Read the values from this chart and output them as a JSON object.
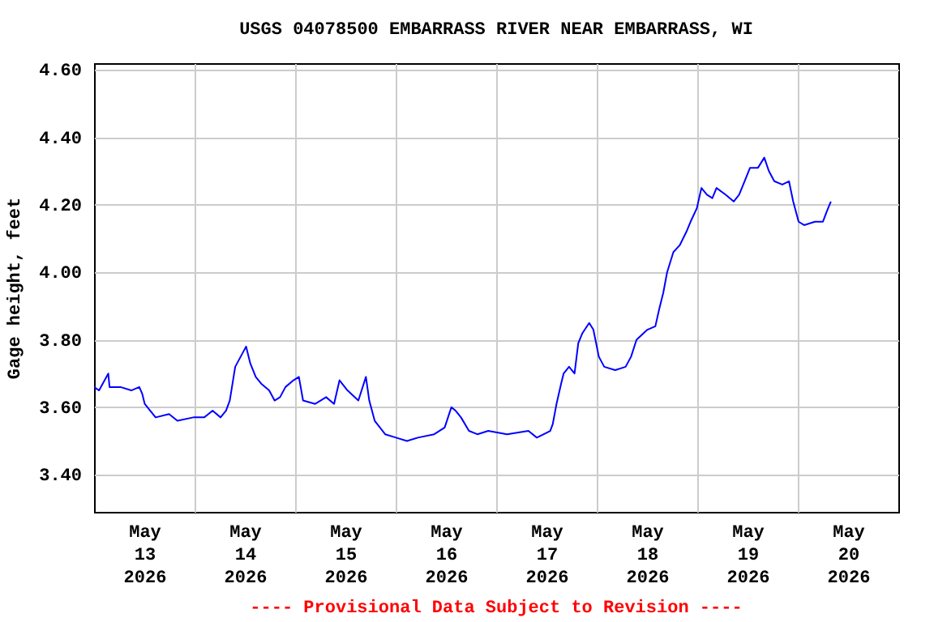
{
  "chart_data": {
    "type": "line",
    "title": "USGS 04078500 EMBARRASS RIVER NEAR EMBARRASS, WI",
    "ylabel": "Gage height, feet",
    "annotations": [
      "---- Provisional Data Subject to Revision ----"
    ],
    "x": [
      "2026-05-13T00:00",
      "2026-05-13T01:12",
      "2026-05-13T03:24",
      "2026-05-13T03:42",
      "2026-05-13T06:18",
      "2026-05-13T08:54",
      "2026-05-13T10:48",
      "2026-05-13T11:30",
      "2026-05-13T12:06",
      "2026-05-13T13:24",
      "2026-05-13T14:42",
      "2026-05-13T17:54",
      "2026-05-13T19:54",
      "2026-05-13T23:42",
      "2026-05-14T02:18",
      "2026-05-14T04:18",
      "2026-05-14T06:12",
      "2026-05-14T07:30",
      "2026-05-14T08:24",
      "2026-05-14T09:42",
      "2026-05-14T11:00",
      "2026-05-14T12:18",
      "2026-05-14T13:18",
      "2026-05-14T14:36",
      "2026-05-14T15:54",
      "2026-05-14T17:48",
      "2026-05-14T19:06",
      "2026-05-14T20:24",
      "2026-05-14T21:42",
      "2026-05-14T23:36",
      "2026-05-15T00:54",
      "2026-05-15T01:54",
      "2026-05-15T04:48",
      "2026-05-15T07:24",
      "2026-05-15T09:18",
      "2026-05-15T10:36",
      "2026-05-15T12:30",
      "2026-05-15T15:06",
      "2026-05-15T16:54",
      "2026-05-15T17:42",
      "2026-05-15T19:00",
      "2026-05-15T21:30",
      "2026-05-16T00:06",
      "2026-05-16T02:42",
      "2026-05-16T05:18",
      "2026-05-16T09:12",
      "2026-05-16T11:42",
      "2026-05-16T13:18",
      "2026-05-16T14:18",
      "2026-05-16T15:36",
      "2026-05-16T17:30",
      "2026-05-16T19:30",
      "2026-05-16T22:06",
      "2026-05-17T02:36",
      "2026-05-17T07:42",
      "2026-05-17T09:42",
      "2026-05-17T12:54",
      "2026-05-17T13:30",
      "2026-05-17T14:24",
      "2026-05-17T15:30",
      "2026-05-17T16:06",
      "2026-05-17T17:24",
      "2026-05-17T18:42",
      "2026-05-17T19:36",
      "2026-05-17T20:36",
      "2026-05-17T22:12",
      "2026-05-17T23:12",
      "2026-05-18T00:30",
      "2026-05-18T01:48",
      "2026-05-18T04:24",
      "2026-05-18T06:54",
      "2026-05-18T08:12",
      "2026-05-18T09:30",
      "2026-05-18T12:06",
      "2026-05-18T14:00",
      "2026-05-18T14:54",
      "2026-05-18T15:54",
      "2026-05-18T16:48",
      "2026-05-18T18:18",
      "2026-05-18T19:48",
      "2026-05-18T21:24",
      "2026-05-18T22:24",
      "2026-05-18T23:54",
      "2026-05-19T01:00",
      "2026-05-19T02:18",
      "2026-05-19T03:36",
      "2026-05-19T04:36",
      "2026-05-19T06:48",
      "2026-05-19T08:42",
      "2026-05-19T10:00",
      "2026-05-19T11:18",
      "2026-05-19T12:36",
      "2026-05-19T14:30",
      "2026-05-19T16:00",
      "2026-05-19T17:06",
      "2026-05-19T18:24",
      "2026-05-19T20:18",
      "2026-05-19T21:54",
      "2026-05-19T22:54",
      "2026-05-20T00:12",
      "2026-05-20T01:30",
      "2026-05-20T04:06",
      "2026-05-20T06:00",
      "2026-05-20T06:54",
      "2026-05-20T07:54"
    ],
    "series": [
      {
        "color": "#0000ff",
        "values": [
          3.66,
          3.65,
          3.7,
          3.66,
          3.66,
          3.65,
          3.66,
          3.64,
          3.61,
          3.59,
          3.57,
          3.58,
          3.56,
          3.57,
          3.57,
          3.59,
          3.57,
          3.59,
          3.62,
          3.72,
          3.75,
          3.78,
          3.73,
          3.69,
          3.67,
          3.65,
          3.62,
          3.63,
          3.66,
          3.68,
          3.69,
          3.62,
          3.61,
          3.63,
          3.61,
          3.68,
          3.65,
          3.62,
          3.69,
          3.62,
          3.56,
          3.52,
          3.51,
          3.5,
          3.51,
          3.52,
          3.54,
          3.6,
          3.59,
          3.57,
          3.53,
          3.52,
          3.53,
          3.52,
          3.53,
          3.51,
          3.53,
          3.55,
          3.61,
          3.67,
          3.7,
          3.72,
          3.7,
          3.79,
          3.82,
          3.85,
          3.83,
          3.75,
          3.72,
          3.71,
          3.72,
          3.75,
          3.8,
          3.83,
          3.84,
          3.89,
          3.94,
          4.0,
          4.06,
          4.08,
          4.12,
          4.15,
          4.19,
          4.25,
          4.23,
          4.22,
          4.25,
          4.23,
          4.21,
          4.23,
          4.27,
          4.31,
          4.31,
          4.34,
          4.3,
          4.27,
          4.26,
          4.27,
          4.21,
          4.15,
          4.14,
          4.15,
          4.15,
          4.18,
          4.21
        ]
      }
    ],
    "xlim": [
      "2026-05-13T00:00",
      "2026-05-21T00:00"
    ],
    "xticks": [
      {
        "value": "2026-05-13T12:00",
        "label": "May 13 2026"
      },
      {
        "value": "2026-05-14T12:00",
        "label": "May 14 2026"
      },
      {
        "value": "2026-05-15T12:00",
        "label": "May 15 2026"
      },
      {
        "value": "2026-05-16T12:00",
        "label": "May 16 2026"
      },
      {
        "value": "2026-05-17T12:00",
        "label": "May 17 2026"
      },
      {
        "value": "2026-05-18T12:00",
        "label": "May 18 2026"
      },
      {
        "value": "2026-05-19T12:00",
        "label": "May 19 2026"
      },
      {
        "value": "2026-05-20T12:00",
        "label": "May 20 2026"
      },
      {
        "value": "2026-05-14T00:00",
        "label": null
      },
      {
        "value": "2026-05-15T00:00",
        "label": null
      },
      {
        "value": "2026-05-16T00:00",
        "label": null
      },
      {
        "value": "2026-05-17T00:00",
        "label": null
      },
      {
        "value": "2026-05-18T00:00",
        "label": null
      },
      {
        "value": "2026-05-19T00:00",
        "label": null
      },
      {
        "value": "2026-05-20T00:00",
        "label": null
      }
    ],
    "ylim": [
      3.29,
      4.62
    ],
    "yticks": [
      {
        "value": 3.4,
        "label": "3.40"
      },
      {
        "value": 3.6,
        "label": "3.60"
      },
      {
        "value": 3.8,
        "label": "3.80"
      },
      {
        "value": 4.0,
        "label": "4.00"
      },
      {
        "value": 4.2,
        "label": "4.20"
      },
      {
        "value": 4.4,
        "label": "4.40"
      },
      {
        "value": 4.6,
        "label": "4.60"
      }
    ],
    "grid": true,
    "marker": "none",
    "line_style": "solid"
  }
}
